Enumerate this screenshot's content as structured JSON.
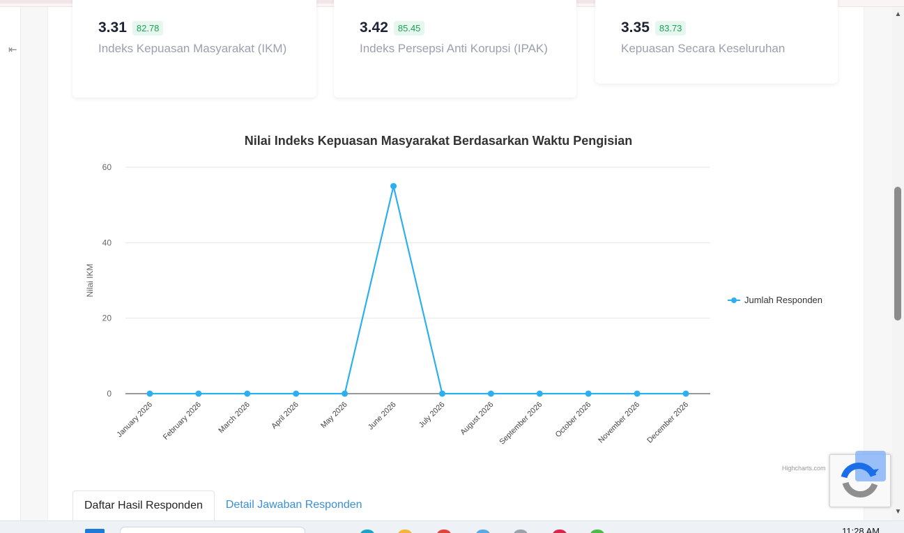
{
  "sidebar": {
    "collapse_glyph": "⇤",
    "collapse_icon": "collapse-left-icon"
  },
  "stats": [
    {
      "value": "3.31",
      "percent": "82.78",
      "label": "Indeks Kepuasan Masyarakat (IKM)"
    },
    {
      "value": "3.42",
      "percent": "85.45",
      "label": "Indeks Persepsi Anti Korupsi (IPAK)"
    },
    {
      "value": "3.35",
      "percent": "83.73",
      "label": "Kepuasan Secara Keseluruhan"
    }
  ],
  "chart_data": {
    "type": "line",
    "title": "Nilai Indeks Kepuasan Masyarakat Berdasarkan Waktu Pengisian",
    "xlabel": "",
    "ylabel": "Nilai IKM",
    "categories": [
      "January 2026",
      "February 2026",
      "March 2026",
      "April 2026",
      "May 2026",
      "June 2026",
      "July 2026",
      "August 2026",
      "September 2026",
      "October 2026",
      "November 2026",
      "December 2026"
    ],
    "series": [
      {
        "name": "Jumlah Responden",
        "values": [
          0,
          0,
          0,
          0,
          0,
          55,
          0,
          0,
          0,
          0,
          0,
          0
        ],
        "color": "#2caff0"
      }
    ],
    "ylim": [
      0,
      60
    ],
    "yticks": [
      0,
      20,
      40,
      60
    ],
    "grid": true,
    "legend_position": "right",
    "credits": "Highcharts.com"
  },
  "tabs": [
    {
      "label": "Daftar Hasil Responden",
      "active": true
    },
    {
      "label": "Detail Jawaban Responden",
      "active": false
    }
  ],
  "scrollbar": {
    "up_glyph": "▲",
    "down_glyph": "▼"
  },
  "taskbar": {
    "clock": "11:28 AM"
  }
}
